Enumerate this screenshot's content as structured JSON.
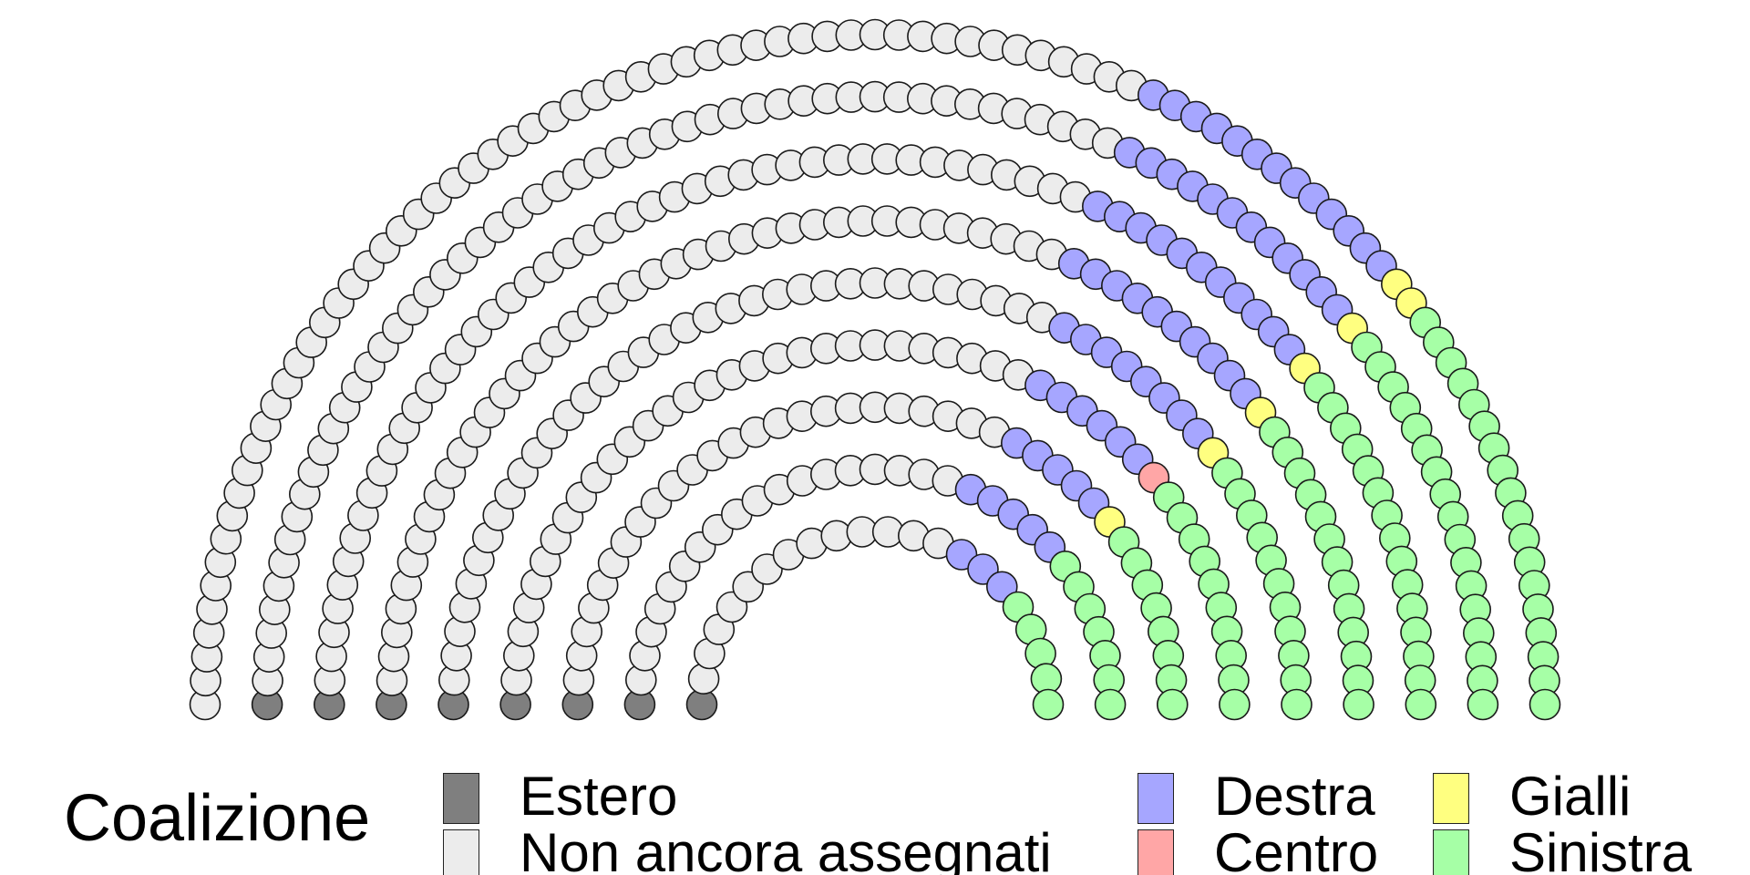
{
  "legend": {
    "title": "Coalizione",
    "items": [
      {
        "label": "Estero",
        "color": "#7f7f7f"
      },
      {
        "label": "Non ancora assegnati",
        "color": "#ececec"
      },
      {
        "label": "Destra",
        "color": "#a6a6ff"
      },
      {
        "label": "Centro",
        "color": "#ffa6a6"
      },
      {
        "label": "Gialli",
        "color": "#ffff80"
      },
      {
        "label": "Sinistra",
        "color": "#a6ffa6"
      }
    ]
  },
  "chart_data": {
    "type": "parliament",
    "groups": [
      {
        "name": "Estero",
        "seats": 8,
        "color": "#7f7f7f"
      },
      {
        "name": "Non ancora assegnati",
        "seats": 307,
        "color": "#ececec"
      },
      {
        "name": "Destra",
        "seats": 73,
        "color": "#a6a6ff"
      },
      {
        "name": "Centro",
        "seats": 1,
        "color": "#ffa6a6"
      },
      {
        "name": "Gialli",
        "seats": 7,
        "color": "#ffff80"
      },
      {
        "name": "Sinistra",
        "seats": 104,
        "color": "#a6ffa6"
      }
    ],
    "total_seats": 500
  }
}
